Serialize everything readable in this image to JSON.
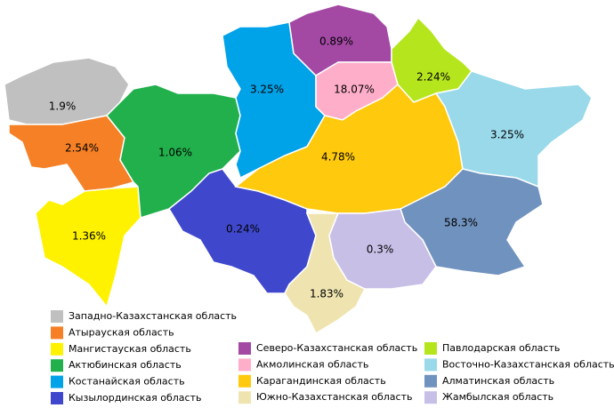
{
  "map": {
    "regions": [
      {
        "name": "Западно-Казахстанская область",
        "color": "#c0c0c0",
        "label": "1.9%"
      },
      {
        "name": "Атырауская область",
        "color": "#f58025",
        "label": "2.54%"
      },
      {
        "name": "Мангистауская область",
        "color": "#fff200",
        "label": "1.36%"
      },
      {
        "name": "Актюбинская область",
        "color": "#21b04b",
        "label": "1.06%"
      },
      {
        "name": "Костанайская область",
        "color": "#00a2e8",
        "label": "3.25%"
      },
      {
        "name": "Кызылординская область",
        "color": "#3f48cc",
        "label": "0.24%"
      },
      {
        "name": "Северо-Казахстанская область",
        "color": "#a349a4",
        "label": "0.89%"
      },
      {
        "name": "Акмолинская область",
        "color": "#ffaec9",
        "label": "18.07%"
      },
      {
        "name": "Карагандинская область",
        "color": "#ffc90e",
        "label": "4.78%"
      },
      {
        "name": "Южно-Казахстанская область",
        "color": "#efe4b0",
        "label": "1.83%"
      },
      {
        "name": "Павлодарская область",
        "color": "#b5e61d",
        "label": "2.24%"
      },
      {
        "name": "Восточно-Казахстанская область",
        "color": "#99d9ea",
        "label": "3.25%"
      },
      {
        "name": "Алматинская область",
        "color": "#7092be",
        "label": "58.3%"
      },
      {
        "name": "Жамбылская область",
        "color": "#c8bfe7",
        "label": "0.3%"
      }
    ]
  }
}
